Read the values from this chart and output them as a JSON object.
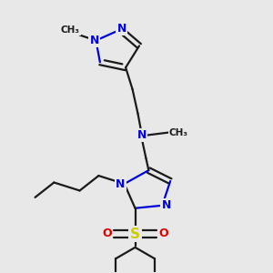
{
  "bg_color": "#e8e8e8",
  "bond_color": "#1a1a1a",
  "nitrogen_color": "#0000dd",
  "sulfur_color": "#cccc00",
  "oxygen_color": "#dd0000",
  "line_width": 1.6,
  "figsize": [
    3.0,
    3.0
  ],
  "dpi": 100,
  "xlim": [
    0,
    10
  ],
  "ylim": [
    0,
    10
  ]
}
